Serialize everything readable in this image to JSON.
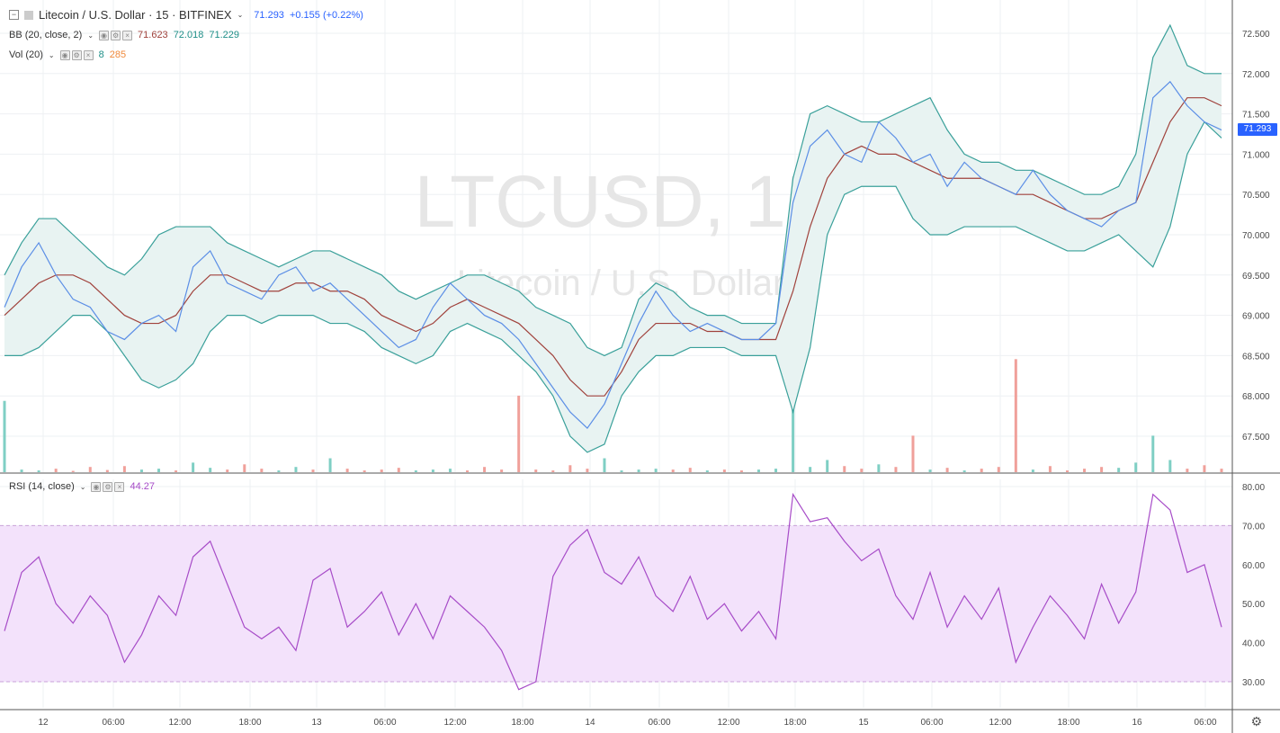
{
  "header": {
    "symbol_title": "Litecoin / U.S. Dollar · 15 · BITFINEX",
    "last_price": "71.293",
    "change": "+0.155 (+0.22%)"
  },
  "indicators": {
    "bb": {
      "label": "BB (20, close, 2)",
      "v1": "71.623",
      "v2": "72.018",
      "v3": "71.229"
    },
    "vol": {
      "label": "Vol (20)",
      "v1": "8",
      "v2": "285"
    },
    "rsi": {
      "label": "RSI (14, close)",
      "v1": "44.27"
    }
  },
  "watermark": {
    "line1": "LTCUSD, 15",
    "line2": "Litecoin / U.S. Dollar"
  },
  "price_axis_label": "71.293",
  "colors": {
    "price": "#5b8ee6",
    "basis": "#a0423c",
    "band": "#3aa09a",
    "band_fill": "#e8f3f2",
    "vol_up": "#7fcfc4",
    "vol_down": "#f0a09a",
    "rsi": "#a74cc8",
    "rsi_fill": "#f3e2fb",
    "last_box": "#2962ff"
  },
  "chart_data": [
    {
      "type": "line",
      "name": "price",
      "x_ticks": [
        "12",
        "06:00",
        "12:00",
        "18:00",
        "13",
        "06:00",
        "12:00",
        "18:00",
        "14",
        "06:00",
        "12:00",
        "18:00",
        "15",
        "06:00",
        "12:00",
        "18:00",
        "16",
        "06:00"
      ],
      "y_ticks": [
        "72.500",
        "72.000",
        "71.500",
        "71.000",
        "70.500",
        "70.000",
        "69.500",
        "69.000",
        "68.500",
        "68.000",
        "67.500"
      ],
      "ylim": [
        67.1,
        72.6
      ],
      "series": [
        {
          "name": "Close",
          "values": [
            69.1,
            69.6,
            69.9,
            69.5,
            69.2,
            69.1,
            68.8,
            68.7,
            68.9,
            69.0,
            68.8,
            69.6,
            69.8,
            69.4,
            69.3,
            69.2,
            69.5,
            69.6,
            69.3,
            69.4,
            69.2,
            69.0,
            68.8,
            68.6,
            68.7,
            69.1,
            69.4,
            69.2,
            69.0,
            68.9,
            68.7,
            68.4,
            68.1,
            67.8,
            67.6,
            67.9,
            68.4,
            68.9,
            69.3,
            69.0,
            68.8,
            68.9,
            68.8,
            68.7,
            68.7,
            68.9,
            70.4,
            71.1,
            71.3,
            71.0,
            70.9,
            71.4,
            71.2,
            70.9,
            71.0,
            70.6,
            70.9,
            70.7,
            70.6,
            70.5,
            70.8,
            70.5,
            70.3,
            70.2,
            70.1,
            70.3,
            70.4,
            71.7,
            71.9,
            71.6,
            71.4,
            71.3
          ]
        },
        {
          "name": "BB basis",
          "values": [
            69.0,
            69.2,
            69.4,
            69.5,
            69.5,
            69.4,
            69.2,
            69.0,
            68.9,
            68.9,
            69.0,
            69.3,
            69.5,
            69.5,
            69.4,
            69.3,
            69.3,
            69.4,
            69.4,
            69.3,
            69.3,
            69.2,
            69.0,
            68.9,
            68.8,
            68.9,
            69.1,
            69.2,
            69.1,
            69.0,
            68.9,
            68.7,
            68.5,
            68.2,
            68.0,
            68.0,
            68.3,
            68.7,
            68.9,
            68.9,
            68.9,
            68.8,
            68.8,
            68.7,
            68.7,
            68.7,
            69.3,
            70.1,
            70.7,
            71.0,
            71.1,
            71.0,
            71.0,
            70.9,
            70.8,
            70.7,
            70.7,
            70.7,
            70.6,
            70.5,
            70.5,
            70.4,
            70.3,
            70.2,
            70.2,
            70.3,
            70.4,
            70.9,
            71.4,
            71.7,
            71.7,
            71.6
          ]
        },
        {
          "name": "BB upper",
          "values": [
            69.5,
            69.9,
            70.2,
            70.2,
            70.0,
            69.8,
            69.6,
            69.5,
            69.7,
            70.0,
            70.1,
            70.1,
            70.1,
            69.9,
            69.8,
            69.7,
            69.6,
            69.7,
            69.8,
            69.8,
            69.7,
            69.6,
            69.5,
            69.3,
            69.2,
            69.3,
            69.4,
            69.5,
            69.5,
            69.4,
            69.3,
            69.1,
            69.0,
            68.9,
            68.6,
            68.5,
            68.6,
            69.2,
            69.4,
            69.3,
            69.1,
            69.0,
            69.0,
            68.9,
            68.9,
            68.9,
            70.7,
            71.5,
            71.6,
            71.5,
            71.4,
            71.4,
            71.5,
            71.6,
            71.7,
            71.3,
            71.0,
            70.9,
            70.9,
            70.8,
            70.8,
            70.7,
            70.6,
            70.5,
            70.5,
            70.6,
            71.0,
            72.2,
            72.6,
            72.1,
            72.0,
            72.0
          ]
        },
        {
          "name": "BB lower",
          "values": [
            68.5,
            68.5,
            68.6,
            68.8,
            69.0,
            69.0,
            68.8,
            68.5,
            68.2,
            68.1,
            68.2,
            68.4,
            68.8,
            69.0,
            69.0,
            68.9,
            69.0,
            69.0,
            69.0,
            68.9,
            68.9,
            68.8,
            68.6,
            68.5,
            68.4,
            68.5,
            68.8,
            68.9,
            68.8,
            68.7,
            68.5,
            68.3,
            68.0,
            67.5,
            67.3,
            67.4,
            68.0,
            68.3,
            68.5,
            68.5,
            68.6,
            68.6,
            68.6,
            68.5,
            68.5,
            68.5,
            67.8,
            68.6,
            70.0,
            70.5,
            70.6,
            70.6,
            70.6,
            70.2,
            70.0,
            70.0,
            70.1,
            70.1,
            70.1,
            70.1,
            70.0,
            69.9,
            69.8,
            69.8,
            69.9,
            70.0,
            69.8,
            69.6,
            70.1,
            71.0,
            71.4,
            71.2
          ]
        }
      ]
    },
    {
      "type": "bar",
      "name": "volume",
      "values": [
        820,
        30,
        20,
        40,
        15,
        60,
        25,
        70,
        30,
        40,
        20,
        110,
        50,
        30,
        90,
        40,
        20,
        60,
        30,
        160,
        40,
        20,
        30,
        50,
        20,
        30,
        40,
        20,
        60,
        30,
        880,
        30,
        20,
        80,
        40,
        160,
        20,
        30,
        40,
        30,
        50,
        20,
        30,
        20,
        30,
        40,
        980,
        60,
        140,
        70,
        40,
        90,
        60,
        420,
        30,
        50,
        20,
        40,
        60,
        1300,
        30,
        70,
        20,
        40,
        60,
        50,
        110,
        420,
        140,
        40,
        80,
        40
      ]
    },
    {
      "type": "line",
      "name": "rsi",
      "y_ticks": [
        "80.00",
        "70.00",
        "60.00",
        "50.00",
        "40.00",
        "30.00"
      ],
      "ylim": [
        25,
        82
      ],
      "bands": [
        30,
        70
      ],
      "values": [
        43,
        58,
        62,
        50,
        45,
        52,
        47,
        35,
        42,
        52,
        47,
        62,
        66,
        55,
        44,
        41,
        44,
        38,
        56,
        59,
        44,
        48,
        53,
        42,
        50,
        41,
        52,
        48,
        44,
        38,
        28,
        30,
        57,
        65,
        69,
        58,
        55,
        62,
        52,
        48,
        57,
        46,
        50,
        43,
        48,
        41,
        78,
        71,
        72,
        66,
        61,
        64,
        52,
        46,
        58,
        44,
        52,
        46,
        54,
        35,
        44,
        52,
        47,
        41,
        55,
        45,
        53,
        78,
        74,
        58,
        60,
        44
      ]
    }
  ]
}
